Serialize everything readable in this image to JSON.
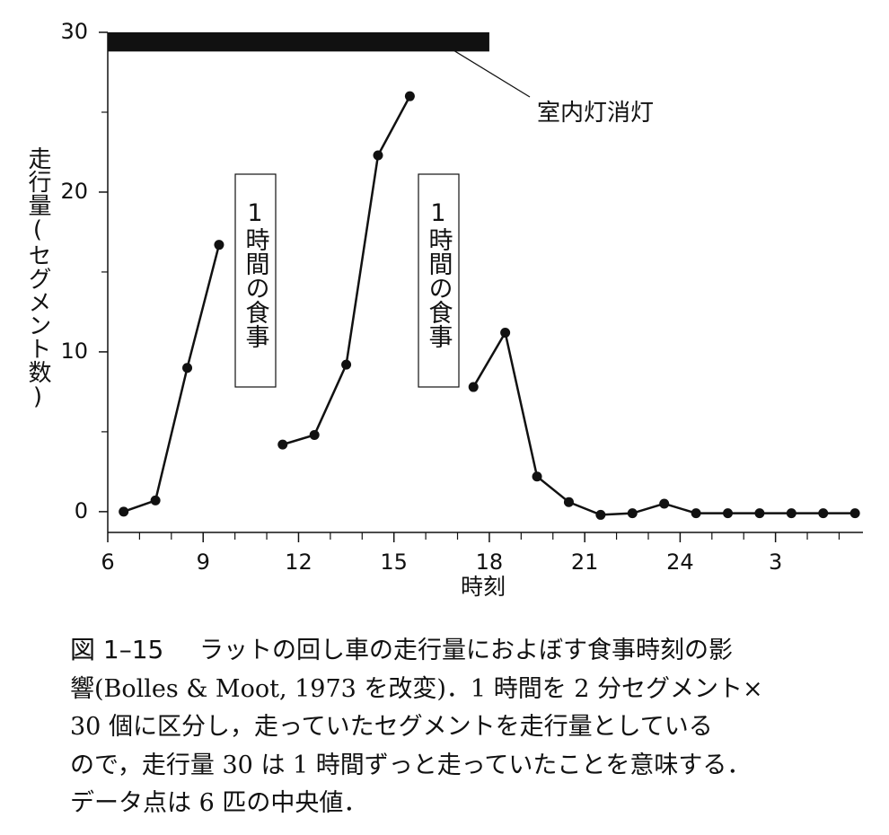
{
  "chart_data": {
    "type": "line",
    "x_label": "時刻",
    "y_label": "走行量(セグメント数)",
    "x": [
      6.5,
      7.5,
      8.5,
      9.5,
      10.5,
      11.5,
      12.5,
      13.5,
      14.5,
      15.5,
      16.5,
      17.5,
      18.5,
      19.5,
      20.5,
      21.5,
      22.5,
      23.5,
      24.5,
      25.5,
      26.5,
      27.5,
      28.5,
      29.5
    ],
    "series": [
      {
        "color": "#111111",
        "values": [
          0,
          0.7,
          9,
          16.7,
          null,
          4.2,
          4.8,
          9.2,
          22.3,
          26,
          null,
          7.8,
          11.2,
          2.2,
          0.6,
          -0.2,
          -0.1,
          0.5,
          -0.1,
          -0.1,
          -0.1,
          -0.1,
          -0.1,
          -0.1
        ]
      }
    ],
    "xlim": [
      6,
      29.75
    ],
    "ylim": [
      -1.3,
      30
    ],
    "xticks": [
      6,
      9,
      12,
      15,
      18,
      21,
      24,
      {
        "value": 27,
        "label": "3"
      }
    ],
    "xminor_ticks": [
      7,
      8,
      10,
      11,
      13,
      14,
      16,
      17,
      19,
      20,
      22,
      23,
      25,
      26,
      28,
      29
    ],
    "yticks": [
      0,
      10,
      20,
      30
    ],
    "yminor_ticks": [
      5,
      15,
      25
    ],
    "lights_off": {
      "label": "室内灯消灯",
      "x": [
        6,
        18
      ],
      "y": [
        28.8,
        30
      ]
    },
    "annotations": [
      "1時間の食事",
      "1時間の食事"
    ]
  },
  "caption": {
    "figure": "図 1–15",
    "lines": [
      "ラットの回し車の走行量におよぼす食事時刻の影",
      "響(Bolles & Moot, 1973 を改変)．1 時間を 2 分セグメント×",
      "30 個に区分し，走っていたセグメントを走行量としている",
      "ので，走行量 30 は 1 時間ずっと走っていたことを意味する．",
      "データ点は 6 匹の中央値．"
    ]
  }
}
